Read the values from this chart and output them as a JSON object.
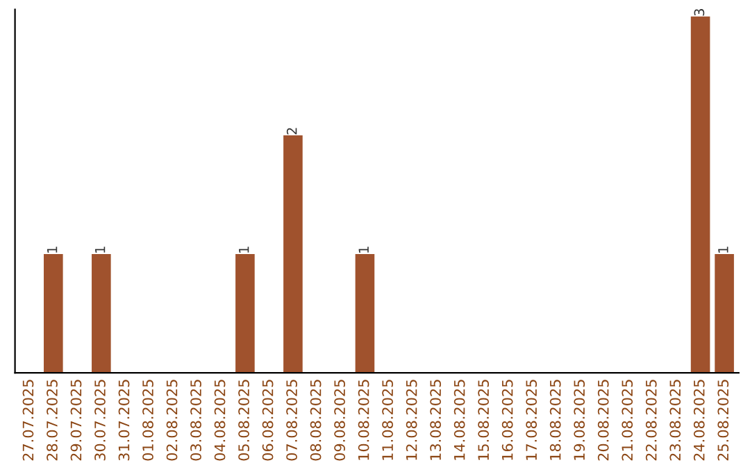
{
  "chart_data": {
    "type": "bar",
    "categories": [
      "27.07.2025",
      "28.07.2025",
      "29.07.2025",
      "30.07.2025",
      "31.07.2025",
      "01.08.2025",
      "02.08.2025",
      "03.08.2025",
      "04.08.2025",
      "05.08.2025",
      "06.08.2025",
      "07.08.2025",
      "08.08.2025",
      "09.08.2025",
      "10.08.2025",
      "11.08.2025",
      "12.08.2025",
      "13.08.2025",
      "14.08.2025",
      "15.08.2025",
      "16.08.2025",
      "17.08.2025",
      "18.08.2025",
      "19.08.2025",
      "20.08.2025",
      "21.08.2025",
      "22.08.2025",
      "23.08.2025",
      "24.08.2025",
      "25.08.2025"
    ],
    "values": [
      0,
      1,
      0,
      1,
      0,
      0,
      0,
      0,
      0,
      1,
      0,
      2,
      0,
      0,
      1,
      0,
      0,
      0,
      0,
      0,
      0,
      0,
      0,
      0,
      0,
      0,
      0,
      0,
      3,
      1
    ],
    "color": "#a0522d",
    "value_labels": [
      null,
      "1",
      null,
      "1",
      null,
      null,
      null,
      null,
      null,
      "1",
      null,
      "2",
      null,
      null,
      "1",
      null,
      null,
      null,
      null,
      null,
      null,
      null,
      null,
      null,
      null,
      null,
      null,
      null,
      "3",
      "1"
    ],
    "grid": false,
    "legend": false
  }
}
